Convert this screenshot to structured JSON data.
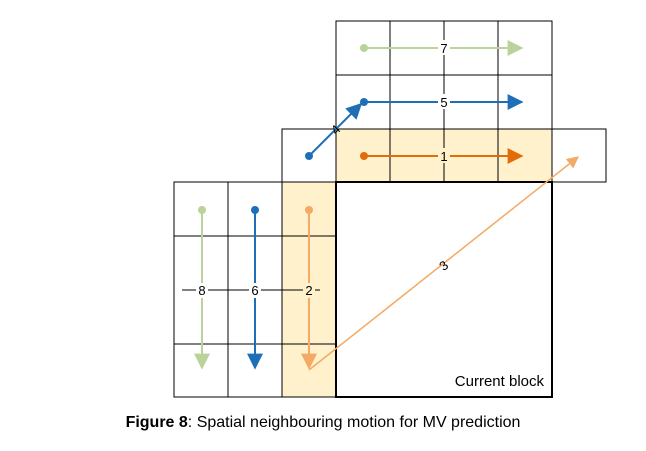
{
  "colors": {
    "highlight_fill": "#FFF1CC",
    "green": "#B9D39B",
    "blue": "#1F6FB8",
    "orange_dark": "#E36C0A",
    "orange_light": "#F4A964",
    "grid": "#000000"
  },
  "labels": {
    "mv_1": "1",
    "mv_2": "2",
    "mv_3": "3",
    "mv_4": "4",
    "mv_5": "5",
    "mv_6": "6",
    "mv_7": "7",
    "mv_8": "8"
  },
  "current_block_label": "Current block",
  "caption": {
    "prefix": "Figure 8",
    "text": ": Spatial neighbouring motion for MV prediction"
  }
}
